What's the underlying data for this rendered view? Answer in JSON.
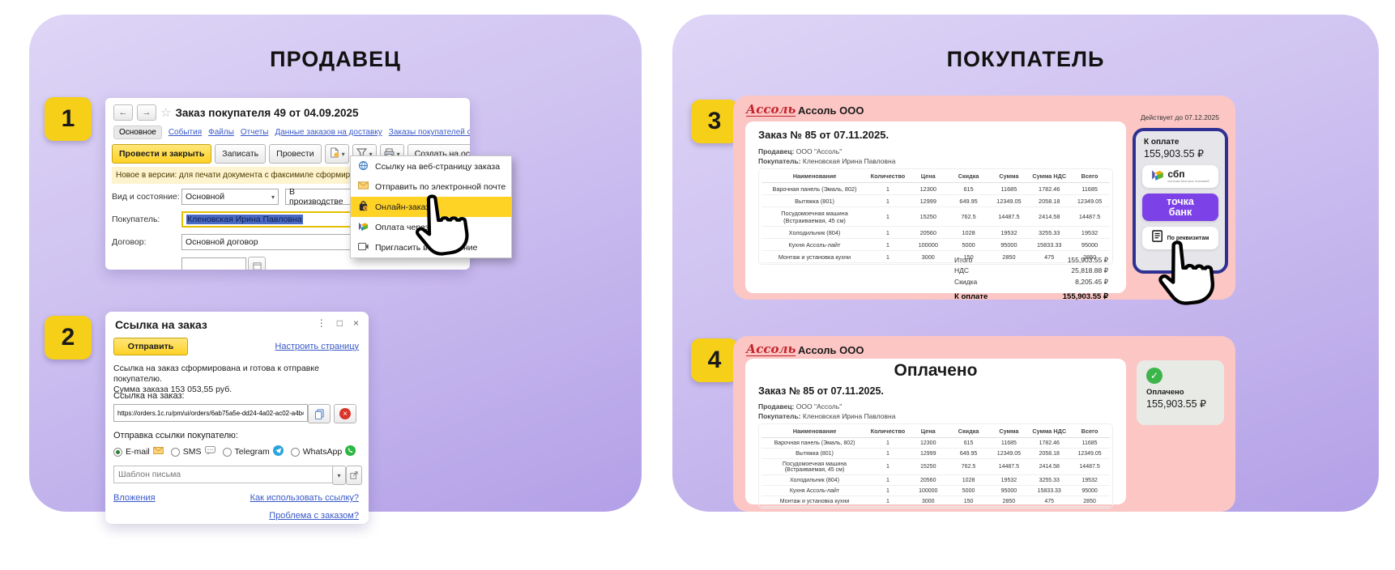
{
  "colors": {
    "panel_purple_light": "#ded5f6",
    "panel_purple_dark": "#b3a0e7",
    "badge_yellow": "#f6cf18",
    "pink_card": "#fbc6c4",
    "accent_yellow_1c": "#ffd226",
    "tochka_purple": "#7d42e7",
    "navy_border": "#2e3192",
    "paid_green": "#3cb54a"
  },
  "seller_panel": {
    "title": "ПРОДАВЕЦ",
    "badge1": "1",
    "badge2": "2"
  },
  "buyer_panel": {
    "title": "ПОКУПАТЕЛЬ",
    "badge3": "3",
    "badge4": "4"
  },
  "ui": {
    "caret": "▾",
    "back": "←",
    "forward": "→",
    "star": "☆",
    "menu_dots": "⋮",
    "maximize": "□",
    "close": "×",
    "x": "×",
    "check": "✓"
  },
  "order_window": {
    "title": "Заказ покупателя 49 от 04.09.2025",
    "tabs": [
      "Основное",
      "События",
      "Файлы",
      "Отчеты",
      "Данные заказов на доставку",
      "Заказы покупателей с сайта"
    ],
    "toolbar": {
      "post_close": "Провести и закрыть",
      "save": "Записать",
      "post": "Провести",
      "create_from": "Создать на основании"
    },
    "notice": "Новое в версии: для печати документа с факсимиле сформируйте",
    "fields": {
      "kind_label": "Вид и состояние:",
      "kind_value": "Основной",
      "state_value": "В производстве",
      "buyer_label": "Покупатель:",
      "buyer_value": "Кленовская Ирина Павловна",
      "contract_label": "Договор:",
      "contract_value": "Основной договор"
    },
    "menu": {
      "items": [
        "Ссылку на веб-страницу заказа",
        "Отправить по электронной почте",
        "Онлайн-заказ",
        "Оплата через СБП",
        "Пригласить в обсуждение"
      ],
      "active_item": "Онлайн-заказ"
    }
  },
  "link_window": {
    "title": "Ссылка на заказ",
    "send": "Отправить",
    "configure": "Настроить страницу",
    "info1": "Ссылка на заказ сформирована и готова к отправке покупателю.",
    "info2": "Сумма заказа 153 053,55 руб.",
    "url_label": "Ссылка на заказ:",
    "url": "https://orders.1c.ru/pm/ui/orders/6ab75a5e-dd24-4a02-ac02-a4b45",
    "send_to_label": "Отправка ссылки покупателю:",
    "channels": [
      "E-mail",
      "SMS",
      "Telegram",
      "WhatsApp"
    ],
    "selected_channel": "E-mail",
    "template_placeholder": "Шаблон письма",
    "attachments": "Вложения",
    "how_to_use": "Как использовать ссылку?",
    "problem": "Проблема с заказом?"
  },
  "invoice": {
    "logo": "Ассоль",
    "company": "Ассоль ООО",
    "valid_until": "Действует до 07.12.2025",
    "order_title": "Заказ № 85 от 07.11.2025.",
    "seller_label": "Продавец:",
    "seller": "ООО \"Ассоль\"",
    "buyer_label": "Покупатель:",
    "buyer": "Кленовская Ирина Павловна",
    "table": {
      "headers": [
        "Наименование",
        "Количество",
        "Цена",
        "Скидка",
        "Сумма",
        "Сумма НДС",
        "Всего"
      ],
      "rows": [
        [
          "Варочная панель (Эмаль, 802)",
          "1",
          "12300",
          "615",
          "11685",
          "1782.46",
          "11685"
        ],
        [
          "Вытяжка (801)",
          "1",
          "12999",
          "649.95",
          "12349.05",
          "2058.18",
          "12349.05"
        ],
        [
          "Посудомоечная машина (Встраиваемая, 45 см)",
          "1",
          "15250",
          "762.5",
          "14487.5",
          "2414.58",
          "14487.5"
        ],
        [
          "Холодильник (804)",
          "1",
          "20560",
          "1028",
          "19532",
          "3255.33",
          "19532"
        ],
        [
          "Кухня Ассоль-лайт",
          "1",
          "100000",
          "5000",
          "95000",
          "15833.33",
          "95000"
        ],
        [
          "Монтаж и установка кухни",
          "1",
          "3000",
          "150",
          "2850",
          "475",
          "2850"
        ]
      ]
    },
    "totals": {
      "total_label": "Итого",
      "total": "155,903.55 ₽",
      "vat_label": "НДС",
      "vat": "25,818.88 ₽",
      "discount_label": "Скидка",
      "discount": "8,205.45 ₽",
      "due_label": "К оплате",
      "due": "155,903.55 ₽"
    }
  },
  "payment": {
    "due_label": "К оплате",
    "amount": "155,903.55 ₽",
    "sbp": "сбп",
    "sbp_sub": "система быстрых платежей",
    "bank_line1": "точка",
    "bank_line2": "банк",
    "requisites": "По реквизитам"
  },
  "paid": {
    "title": "Оплачено",
    "status": "Оплачено",
    "amount": "155,903.55 ₽"
  }
}
